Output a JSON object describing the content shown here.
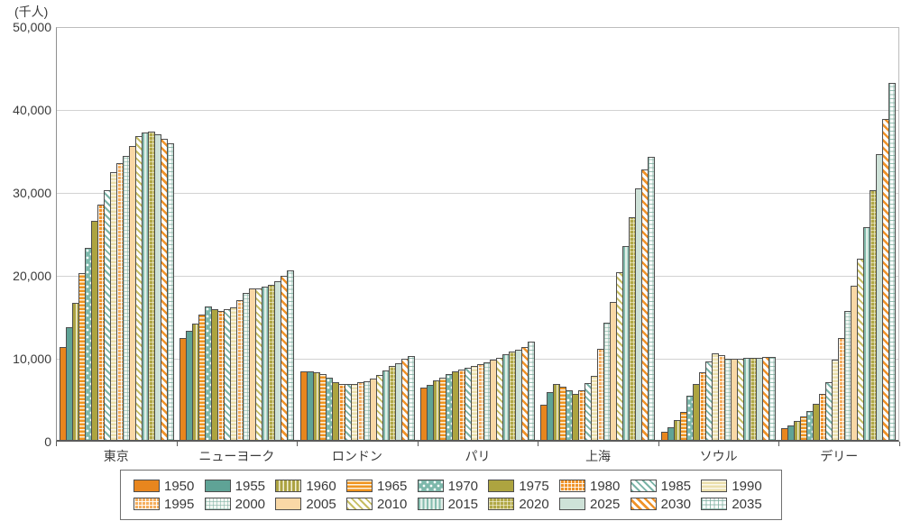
{
  "unit_label": "(千人)",
  "y_axis": {
    "tick_labels": [
      "50,000",
      "40,000",
      "30,000",
      "20,000",
      "10,000",
      "0"
    ],
    "max": 50000,
    "gridline_interval": 10000
  },
  "chart_data": {
    "type": "bar",
    "title": "",
    "xlabel": "",
    "ylabel": "(千人)",
    "ylim": [
      0,
      50000
    ],
    "grid": true,
    "legend_position": "bottom",
    "categories": [
      "東京",
      "ニューヨーク",
      "ロンドン",
      "パリ",
      "上海",
      "ソウル",
      "デリー"
    ],
    "series": [
      {
        "name": "1950",
        "pattern": "solid-orange",
        "values": [
          11270,
          12340,
          8360,
          6300,
          4300,
          1020,
          1370
        ]
      },
      {
        "name": "1955",
        "pattern": "solid-teal",
        "values": [
          13710,
          13220,
          8280,
          6700,
          5850,
          1550,
          1780
        ]
      },
      {
        "name": "1960",
        "pattern": "stripe-v-olive",
        "values": [
          16680,
          14160,
          8200,
          7200,
          6820,
          2360,
          2280
        ]
      },
      {
        "name": "1965",
        "pattern": "stripe-h-orange",
        "values": [
          20280,
          15180,
          7950,
          7600,
          6430,
          3400,
          2850
        ]
      },
      {
        "name": "1970",
        "pattern": "dots-teal",
        "values": [
          23300,
          16190,
          7600,
          8000,
          6040,
          5310,
          3530
        ]
      },
      {
        "name": "1975",
        "pattern": "solid-olive",
        "values": [
          26610,
          15880,
          7000,
          8300,
          5630,
          6810,
          4430
        ]
      },
      {
        "name": "1980",
        "pattern": "grid-orange",
        "values": [
          28550,
          15600,
          6800,
          8500,
          5970,
          8240,
          5560
        ]
      },
      {
        "name": "1985",
        "pattern": "stripe-diag-teal",
        "values": [
          30300,
          15830,
          6800,
          8700,
          6850,
          9550,
          7030
        ]
      },
      {
        "name": "1990",
        "pattern": "stripe-h-cream",
        "values": [
          32530,
          16090,
          6800,
          9000,
          7820,
          10520,
          9730
        ]
      },
      {
        "name": "1995",
        "pattern": "grid-orange-light",
        "values": [
          33590,
          16940,
          7000,
          9200,
          11000,
          10260,
          12410
        ]
      },
      {
        "name": "2000",
        "pattern": "grid-teal-pale",
        "values": [
          34450,
          17810,
          7100,
          9400,
          14250,
          9880,
          15690
        ]
      },
      {
        "name": "2005",
        "pattern": "solid-peach",
        "values": [
          35620,
          18370,
          7400,
          9700,
          16760,
          9830,
          18670
        ]
      },
      {
        "name": "2010",
        "pattern": "stripe-diag-olive",
        "values": [
          36860,
          18370,
          7900,
          10000,
          20310,
          9800,
          21990
        ]
      },
      {
        "name": "2015",
        "pattern": "stripe-v-teal",
        "values": [
          37260,
          18650,
          8450,
          10400,
          23480,
          9940,
          25870
        ]
      },
      {
        "name": "2020",
        "pattern": "grid-olive",
        "values": [
          37390,
          18800,
          8950,
          10700,
          27060,
          9960,
          30290
        ]
      },
      {
        "name": "2025",
        "pattern": "solid-mint",
        "values": [
          37040,
          19220,
          9300,
          10900,
          30500,
          9980,
          34670
        ]
      },
      {
        "name": "2030",
        "pattern": "stripe-diag-orange",
        "values": [
          36570,
          19960,
          9900,
          11300,
          32870,
          10050,
          38940
        ]
      },
      {
        "name": "2035",
        "pattern": "grid-teal-white",
        "values": [
          36010,
          20570,
          10200,
          11900,
          34340,
          10100,
          43350
        ]
      }
    ]
  },
  "legend": {
    "rows": 2,
    "columns": 9,
    "years": [
      "1950",
      "1955",
      "1960",
      "1965",
      "1970",
      "1975",
      "1980",
      "1985",
      "1990",
      "1995",
      "2000",
      "2005",
      "2010",
      "2015",
      "2020",
      "2025",
      "2030",
      "2035"
    ]
  },
  "colors": {
    "orange": "#E8861E",
    "teal": "#5FA396",
    "olive": "#ADA440",
    "peach": "#F9D8A6",
    "cream": "#EBDFAC",
    "mint": "#CEE2D8",
    "pale_teal": "#7DB8AB",
    "gridline": "#D2D2D2",
    "axis": "#5A5A5A",
    "text": "#3A3A3A"
  }
}
